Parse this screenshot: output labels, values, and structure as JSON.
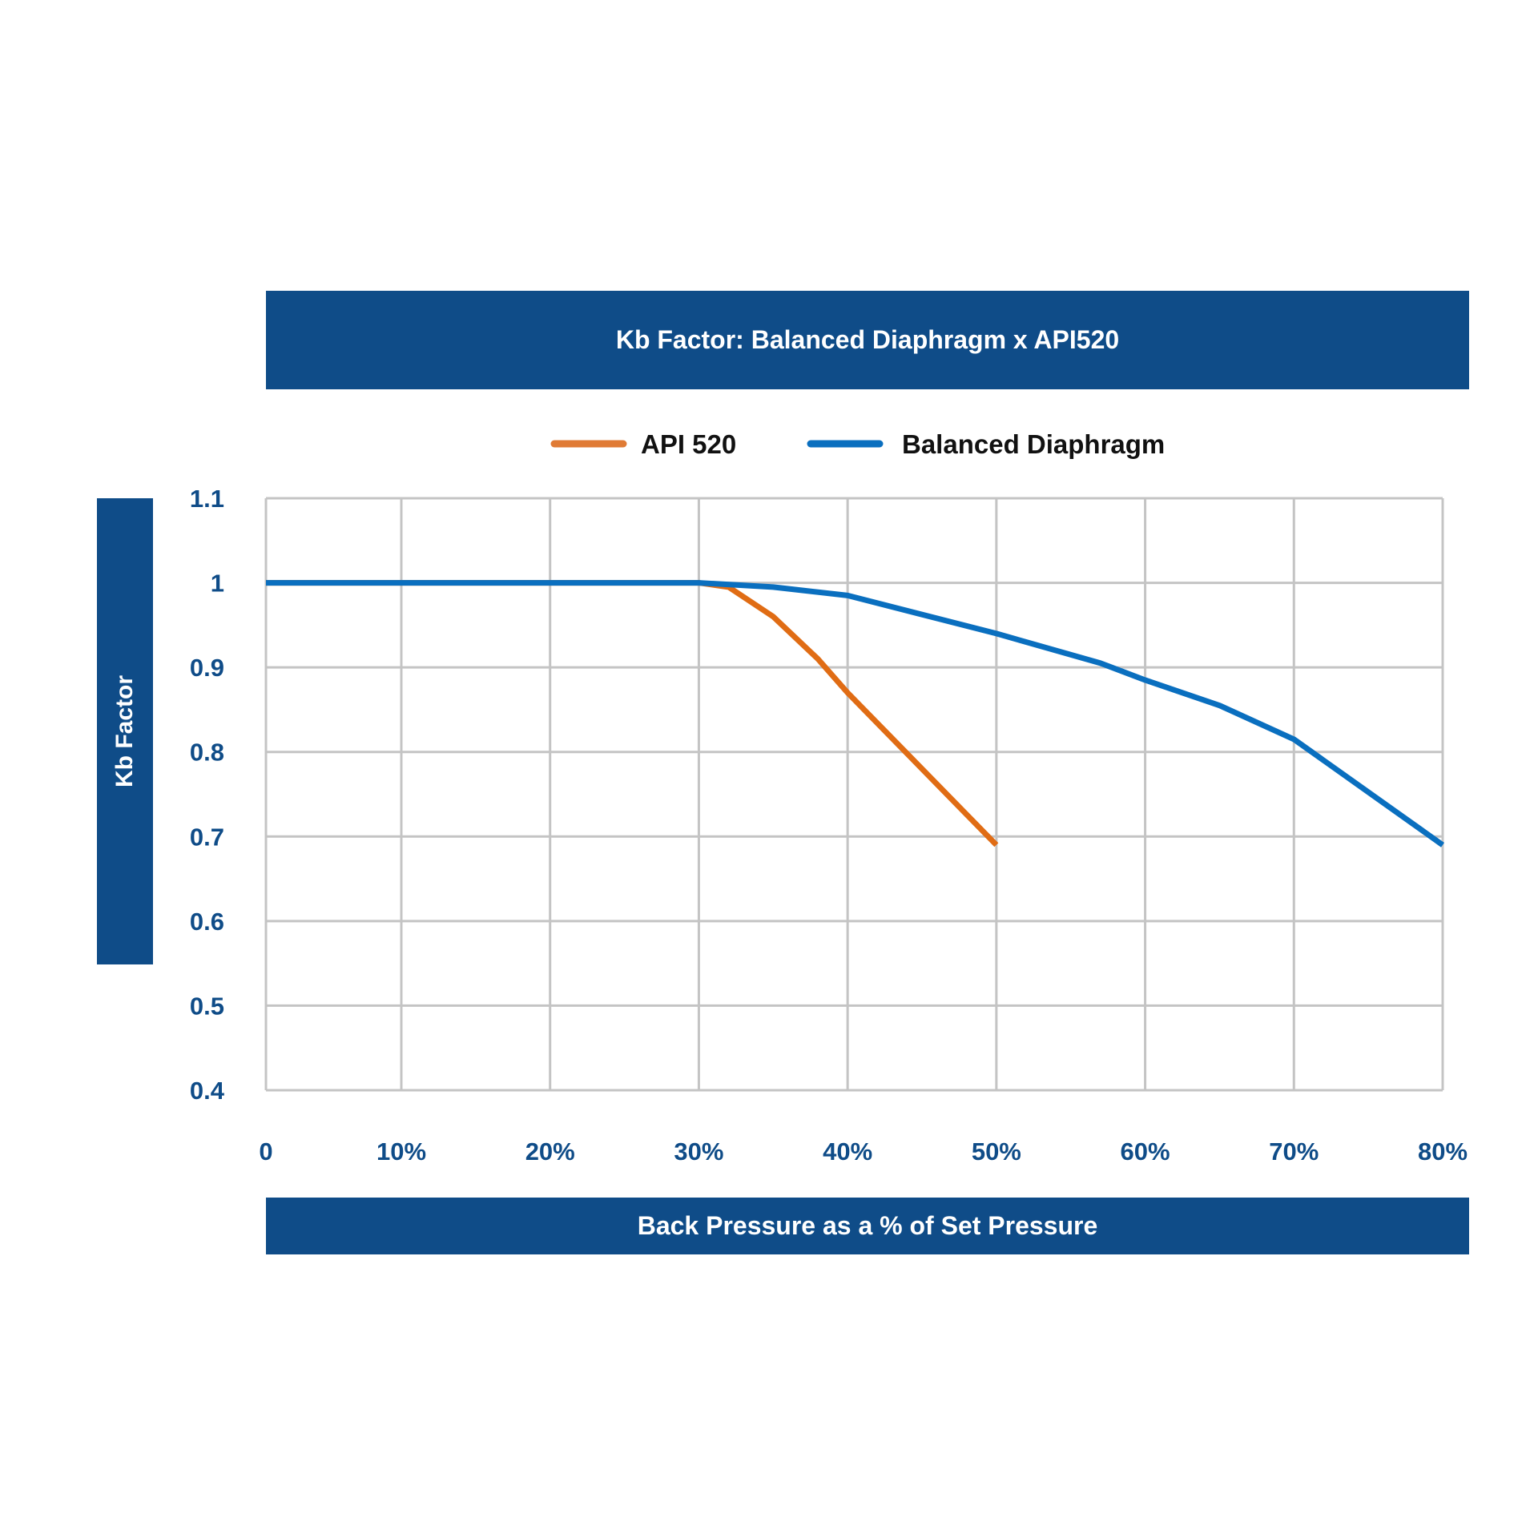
{
  "chart_data": {
    "type": "line",
    "title": "Kb Factor: Balanced Diaphragm x API520",
    "xlabel": "Back Pressure as a % of Set Pressure",
    "ylabel": "Kb Factor",
    "x_ticks": [
      0,
      10,
      20,
      30,
      40,
      50,
      60,
      70,
      80
    ],
    "x_tick_labels": [
      "0",
      "10%",
      "20%",
      "30%",
      "40%",
      "50%",
      "60%",
      "70%",
      "80%"
    ],
    "y_ticks": [
      0.4,
      0.5,
      0.6,
      0.7,
      0.8,
      0.9,
      1,
      1.1
    ],
    "y_tick_labels": [
      "0.4",
      "0.5",
      "0.6",
      "0.7",
      "0.8",
      "0.9",
      "1",
      "1.1"
    ],
    "xlim": [
      0,
      80
    ],
    "ylim": [
      0.4,
      1.1
    ],
    "grid": true,
    "legend_position": "top-center",
    "series": [
      {
        "name": "API 520",
        "color": "#e06c14",
        "legend_color": "#e07b35",
        "x": [
          0,
          30,
          32,
          35,
          38,
          40,
          45,
          50
        ],
        "y": [
          1,
          1,
          0.995,
          0.96,
          0.91,
          0.87,
          0.78,
          0.69
        ]
      },
      {
        "name": "Balanced Diaphragm",
        "color": "#0a6fbf",
        "x": [
          0,
          30,
          35,
          40,
          50,
          57,
          60,
          65,
          70,
          80
        ],
        "y": [
          1,
          1,
          0.995,
          0.985,
          0.94,
          0.905,
          0.885,
          0.855,
          0.815,
          0.69
        ]
      }
    ]
  }
}
